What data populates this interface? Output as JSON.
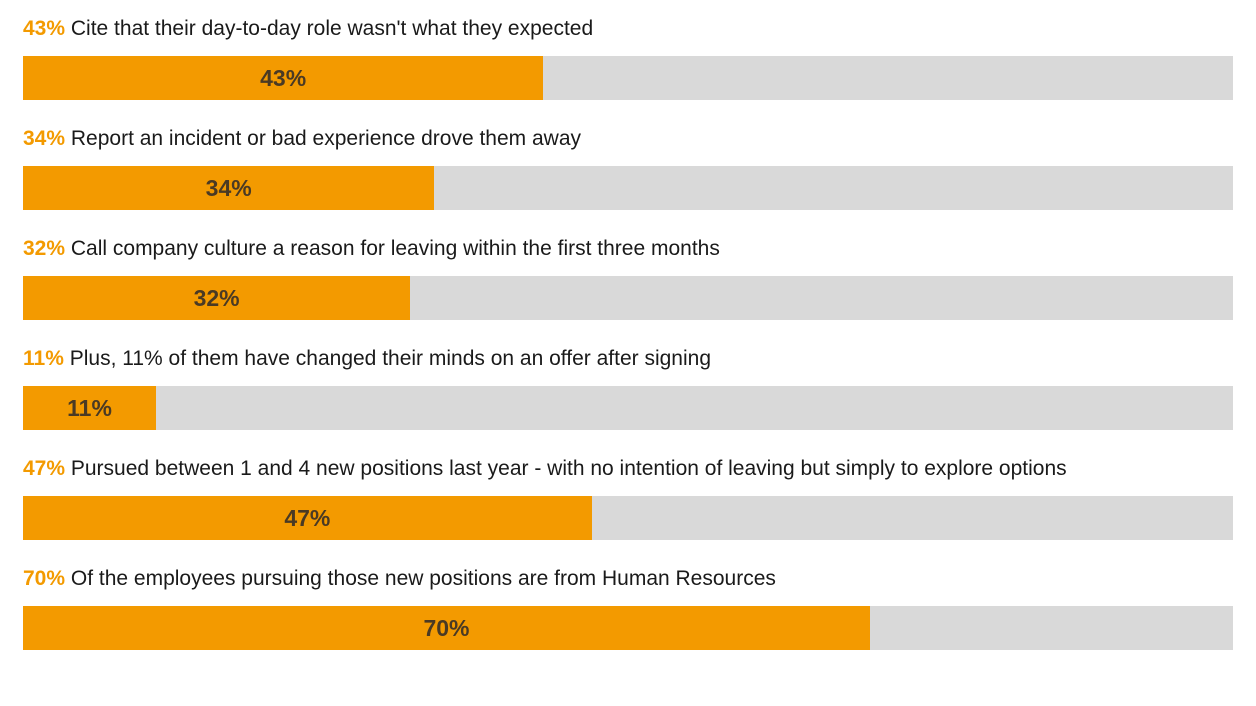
{
  "colors": {
    "fill": "#f39a00",
    "track": "#d9d9d9",
    "highlight_text": "#f39a00",
    "bar_text": "#4a3a24"
  },
  "chart_data": {
    "type": "bar",
    "orientation": "horizontal",
    "xlim": [
      0,
      100
    ],
    "grid": false,
    "rows": [
      {
        "pct_label": "43%",
        "text": "Cite that their day-to-day role wasn't what they expected",
        "value": 43,
        "bar_label": "43%"
      },
      {
        "pct_label": "34%",
        "text": "Report an incident or bad experience drove them away",
        "value": 34,
        "bar_label": "34%"
      },
      {
        "pct_label": "32%",
        "text": "Call company culture a reason for leaving within the first three months",
        "value": 32,
        "bar_label": "32%"
      },
      {
        "pct_label": "11%",
        "text": "Plus, 11% of them have changed their minds on an offer after signing",
        "value": 11,
        "bar_label": "11%"
      },
      {
        "pct_label": "47%",
        "text": "Pursued between 1 and 4 new positions last year - with no intention of leaving but simply to explore options",
        "value": 47,
        "bar_label": "47%"
      },
      {
        "pct_label": "70%",
        "text": "Of the employees pursuing those new positions are from Human Resources",
        "value": 70,
        "bar_label": "70%"
      }
    ]
  }
}
